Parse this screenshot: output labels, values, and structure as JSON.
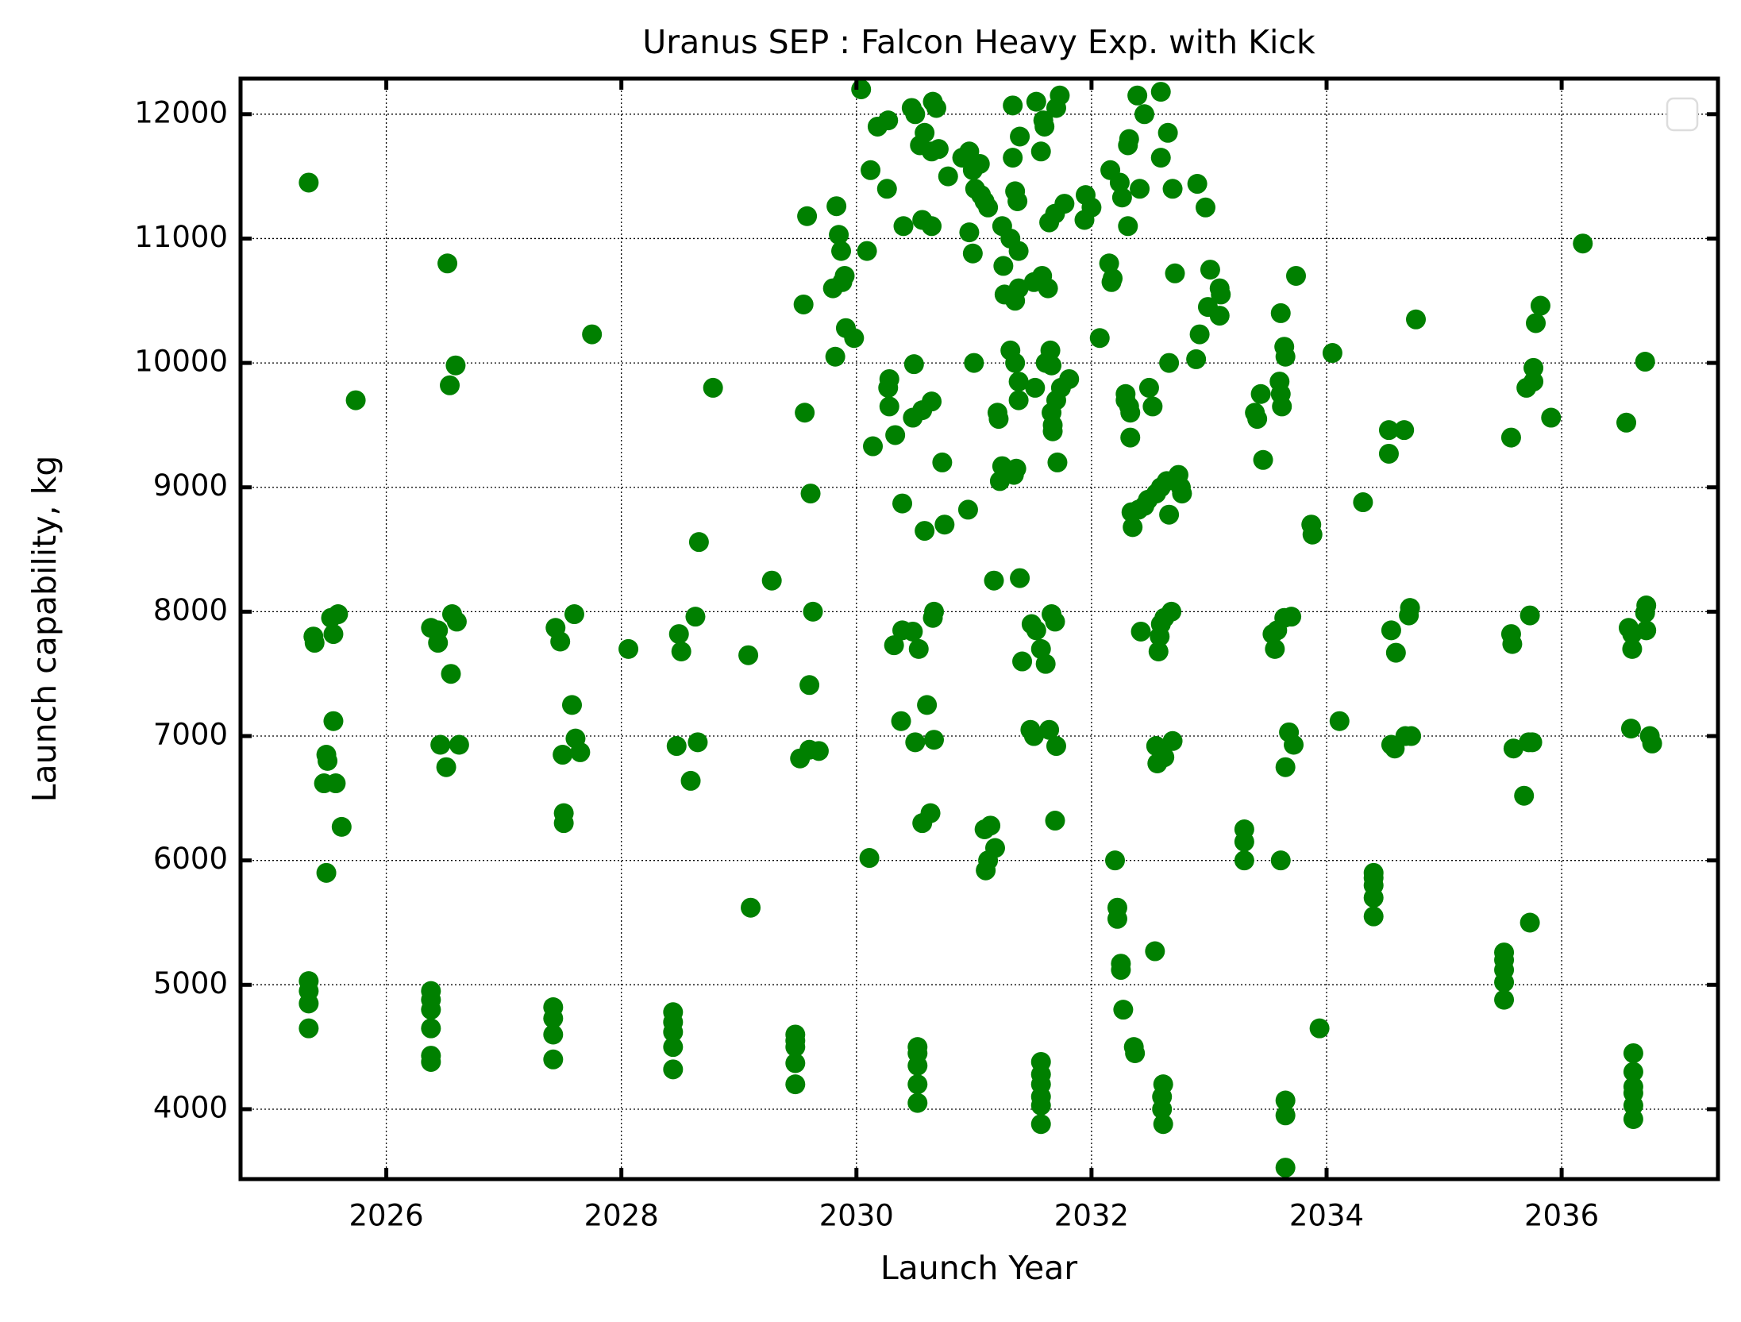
{
  "chart_data": {
    "type": "scatter",
    "title": "Uranus SEP : Falcon Heavy Exp. with Kick",
    "x_label": "Launch Year",
    "y_label": "Launch capability, kg",
    "color": "#008000",
    "grid": true,
    "xlim": [
      2024.76,
      2037.33
    ],
    "ylim": [
      3438,
      12286
    ],
    "xticks": [
      2026,
      2028,
      2030,
      2032,
      2034,
      2036
    ],
    "yticks": [
      4000,
      5000,
      6000,
      7000,
      8000,
      9000,
      10000,
      11000,
      12000
    ],
    "x": [
      2025.34,
      2025.34,
      2025.34,
      2025.34,
      2025.39,
      2025.38,
      2025.34,
      2025.49,
      2025.5,
      2025.47,
      2025.49,
      2025.55,
      2025.53,
      2025.59,
      2025.57,
      2025.55,
      2025.62,
      2025.74,
      2026.38,
      2026.38,
      2026.38,
      2026.38,
      2026.38,
      2026.38,
      2026.38,
      2026.44,
      2026.44,
      2026.46,
      2026.51,
      2026.55,
      2026.56,
      2026.6,
      2026.62,
      2026.54,
      2026.59,
      2026.52,
      2027.42,
      2027.42,
      2027.42,
      2027.42,
      2027.44,
      2027.48,
      2027.5,
      2027.51,
      2027.51,
      2027.58,
      2027.61,
      2027.65,
      2027.6,
      2027.75,
      2028.06,
      2028.44,
      2028.44,
      2028.44,
      2028.44,
      2028.44,
      2028.49,
      2028.51,
      2028.47,
      2028.59,
      2028.65,
      2028.63,
      2028.66,
      2028.78,
      2029.08,
      2029.1,
      2029.28,
      2029.48,
      2029.48,
      2029.48,
      2029.48,
      2029.48,
      2029.52,
      2029.6,
      2029.68,
      2029.6,
      2029.63,
      2029.61,
      2029.56,
      2029.55,
      2029.58,
      2029.82,
      2029.8,
      2029.88,
      2029.9,
      2029.87,
      2029.85,
      2029.83,
      2029.91,
      2029.98,
      2030.04,
      2030.11,
      2030.14,
      2030.09,
      2030.12,
      2030.18,
      2030.27,
      2030.26,
      2030.32,
      2030.39,
      2030.48,
      2030.53,
      2030.38,
      2030.5,
      2030.6,
      2030.56,
      2030.63,
      2030.66,
      2030.65,
      2030.66,
      2030.39,
      2030.58,
      2030.75,
      2030.73,
      2030.33,
      2030.28,
      2030.27,
      2030.28,
      2030.48,
      2030.56,
      2030.64,
      2030.49,
      2030.4,
      2030.56,
      2030.64,
      2030.47,
      2030.5,
      2030.54,
      2030.58,
      2030.64,
      2030.7,
      2030.65,
      2030.68,
      2030.78,
      2030.52,
      2030.52,
      2030.52,
      2030.52,
      2030.52,
      2030.95,
      2031.0,
      2030.99,
      2030.96,
      2030.9,
      2030.96,
      2030.99,
      2031.01,
      2031.06,
      2031.09,
      2031.12,
      2031.05,
      2031.09,
      2031.14,
      2031.18,
      2031.1,
      2031.12,
      2031.17,
      2031.22,
      2031.24,
      2031.34,
      2031.36,
      2031.2,
      2031.21,
      2031.31,
      2031.35,
      2031.38,
      2031.38,
      2031.26,
      2031.35,
      2031.25,
      2031.38,
      2031.38,
      2031.24,
      2031.31,
      2031.35,
      2031.37,
      2031.33,
      2031.39,
      2031.33,
      2031.39,
      2031.41,
      2031.49,
      2031.53,
      2031.57,
      2031.61,
      2031.48,
      2031.51,
      2031.64,
      2031.7,
      2031.69,
      2031.52,
      2031.57,
      2031.57,
      2031.57,
      2031.57,
      2031.57,
      2031.57,
      2031.53,
      2031.59,
      2031.57,
      2031.6,
      2031.7,
      2031.73,
      2031.64,
      2031.69,
      2031.51,
      2031.58,
      2031.63,
      2031.65,
      2031.61,
      2031.66,
      2031.66,
      2031.67,
      2031.67,
      2031.7,
      2031.74,
      2031.81,
      2031.71,
      2031.66,
      2031.69,
      2031.77,
      2031.95,
      2031.94,
      2032.0,
      2032.07,
      2032.15,
      2032.17,
      2032.18,
      2032.16,
      2032.24,
      2032.26,
      2032.41,
      2032.31,
      2032.31,
      2032.32,
      2032.39,
      2032.45,
      2032.29,
      2032.32,
      2032.29,
      2032.33,
      2032.33,
      2032.49,
      2032.52,
      2032.2,
      2032.22,
      2032.22,
      2032.25,
      2032.25,
      2032.27,
      2032.36,
      2032.37,
      2032.34,
      2032.35,
      2032.4,
      2032.42,
      2032.45,
      2032.48,
      2032.55,
      2032.61,
      2032.6,
      2032.6,
      2032.61,
      2032.54,
      2032.56,
      2032.55,
      2032.62,
      2032.69,
      2032.57,
      2032.58,
      2032.59,
      2032.62,
      2032.68,
      2032.66,
      2032.59,
      2032.64,
      2032.74,
      2032.76,
      2032.77,
      2032.66,
      2032.71,
      2032.69,
      2032.59,
      2032.65,
      2032.59,
      2032.89,
      2032.92,
      2032.9,
      2032.97,
      2033.01,
      2032.99,
      2033.09,
      2033.1,
      2033.09,
      2033.3,
      2033.3,
      2033.3,
      2033.41,
      2033.39,
      2033.44,
      2033.46,
      2033.56,
      2033.54,
      2033.58,
      2033.6,
      2033.62,
      2033.61,
      2033.61,
      2033.64,
      2033.65,
      2033.61,
      2033.65,
      2033.65,
      2033.65,
      2033.64,
      2033.7,
      2033.65,
      2033.68,
      2033.72,
      2033.74,
      2033.87,
      2033.88,
      2033.94,
      2034.05,
      2034.11,
      2034.31,
      2034.4,
      2034.4,
      2034.4,
      2034.4,
      2034.4,
      2034.53,
      2034.53,
      2034.55,
      2034.55,
      2034.58,
      2034.59,
      2034.66,
      2034.67,
      2034.72,
      2034.7,
      2034.71,
      2034.76,
      2035.51,
      2035.51,
      2035.51,
      2035.51,
      2035.51,
      2035.57,
      2035.58,
      2035.59,
      2035.57,
      2035.68,
      2035.72,
      2035.75,
      2035.7,
      2035.76,
      2035.76,
      2035.73,
      2035.73,
      2035.78,
      2035.82,
      2035.91,
      2036.18,
      2036.55,
      2036.57,
      2036.6,
      2036.6,
      2036.59,
      2036.61,
      2036.61,
      2036.61,
      2036.61,
      2036.61,
      2036.61,
      2036.72,
      2036.71,
      2036.72,
      2036.75,
      2036.77,
      2036.71
    ],
    "values": [
      4650,
      4850,
      4950,
      5030,
      7750,
      7800,
      11450,
      6850,
      6800,
      6620,
      5900,
      7820,
      7950,
      7980,
      6620,
      7120,
      6270,
      9700,
      4380,
      4430,
      4650,
      4800,
      4880,
      4950,
      7870,
      7750,
      7850,
      6930,
      6750,
      7500,
      7980,
      7920,
      6930,
      9820,
      9980,
      10800,
      4400,
      4600,
      4730,
      4820,
      7870,
      7760,
      6850,
      6380,
      6300,
      7250,
      6980,
      6870,
      7980,
      10230,
      7700,
      4320,
      4500,
      4620,
      4700,
      4780,
      7820,
      7680,
      6920,
      6640,
      6950,
      7960,
      8560,
      9800,
      7650,
      5620,
      8250,
      4200,
      4370,
      4500,
      4550,
      4600,
      6820,
      6890,
      6880,
      7410,
      8000,
      8950,
      9600,
      10470,
      11180,
      10050,
      10600,
      10650,
      10700,
      10900,
      11030,
      11260,
      10280,
      10200,
      12200,
      6020,
      9330,
      10900,
      11550,
      11900,
      11950,
      11400,
      7730,
      7850,
      7840,
      7700,
      7120,
      6950,
      7250,
      6300,
      6380,
      6970,
      7950,
      8000,
      8870,
      8650,
      8700,
      9200,
      9420,
      9650,
      9800,
      9870,
      9560,
      9620,
      9690,
      9990,
      11100,
      11150,
      11100,
      12050,
      12000,
      11750,
      11850,
      11700,
      11720,
      12100,
      12050,
      11500,
      4050,
      4200,
      4350,
      4450,
      4500,
      8820,
      10000,
      10880,
      11050,
      11650,
      11700,
      11550,
      11400,
      11350,
      11300,
      11250,
      11600,
      6250,
      6280,
      6100,
      5920,
      6000,
      8250,
      9050,
      9170,
      9100,
      9150,
      9600,
      9550,
      10100,
      10000,
      9850,
      9700,
      10550,
      10500,
      10780,
      10600,
      10900,
      11100,
      11000,
      11380,
      11300,
      11650,
      11820,
      12070,
      8270,
      7600,
      7900,
      7850,
      7700,
      7580,
      7050,
      7000,
      7050,
      6920,
      6320,
      9800,
      4380,
      4280,
      4200,
      4100,
      4030,
      3880,
      12100,
      11950,
      11700,
      11900,
      12050,
      12150,
      11130,
      11200,
      10650,
      10700,
      10600,
      10100,
      10000,
      9980,
      9600,
      9500,
      9450,
      9700,
      9800,
      9870,
      9200,
      7980,
      7920,
      11280,
      11350,
      11150,
      11250,
      10200,
      10800,
      10650,
      10680,
      11550,
      11450,
      11330,
      11400,
      11100,
      11750,
      11800,
      12150,
      12000,
      9700,
      9650,
      9750,
      9600,
      9400,
      9800,
      9650,
      6000,
      5620,
      5530,
      5170,
      5120,
      4800,
      4500,
      4450,
      8800,
      8680,
      8820,
      7840,
      8850,
      8900,
      8950,
      4200,
      4100,
      4000,
      3880,
      5270,
      6780,
      6920,
      6830,
      6960,
      7680,
      7800,
      7900,
      7950,
      8000,
      8780,
      9000,
      9050,
      9100,
      9000,
      8950,
      10000,
      10720,
      11400,
      11650,
      11850,
      12180,
      10030,
      10230,
      11440,
      11250,
      10750,
      10450,
      10600,
      10550,
      10380,
      6000,
      6150,
      6250,
      9550,
      9600,
      9750,
      9220,
      7700,
      7820,
      7850,
      9850,
      9650,
      9750,
      10400,
      10130,
      10050,
      6000,
      3530,
      3950,
      4070,
      7950,
      7960,
      6750,
      7030,
      6930,
      10700,
      8700,
      8620,
      4650,
      10080,
      7120,
      8880,
      5550,
      5700,
      5800,
      5860,
      5900,
      9460,
      9270,
      7850,
      6930,
      6900,
      7670,
      9460,
      7000,
      7000,
      7970,
      8030,
      10350,
      4880,
      5020,
      5120,
      5200,
      5260,
      7820,
      7740,
      6900,
      9400,
      6520,
      6950,
      6950,
      9800,
      9850,
      9960,
      7970,
      5500,
      10320,
      10460,
      9560,
      10960,
      9520,
      7870,
      7820,
      7700,
      7060,
      3920,
      4030,
      4130,
      4180,
      4300,
      4450,
      7850,
      7990,
      8050,
      7000,
      6940,
      10010
    ]
  }
}
